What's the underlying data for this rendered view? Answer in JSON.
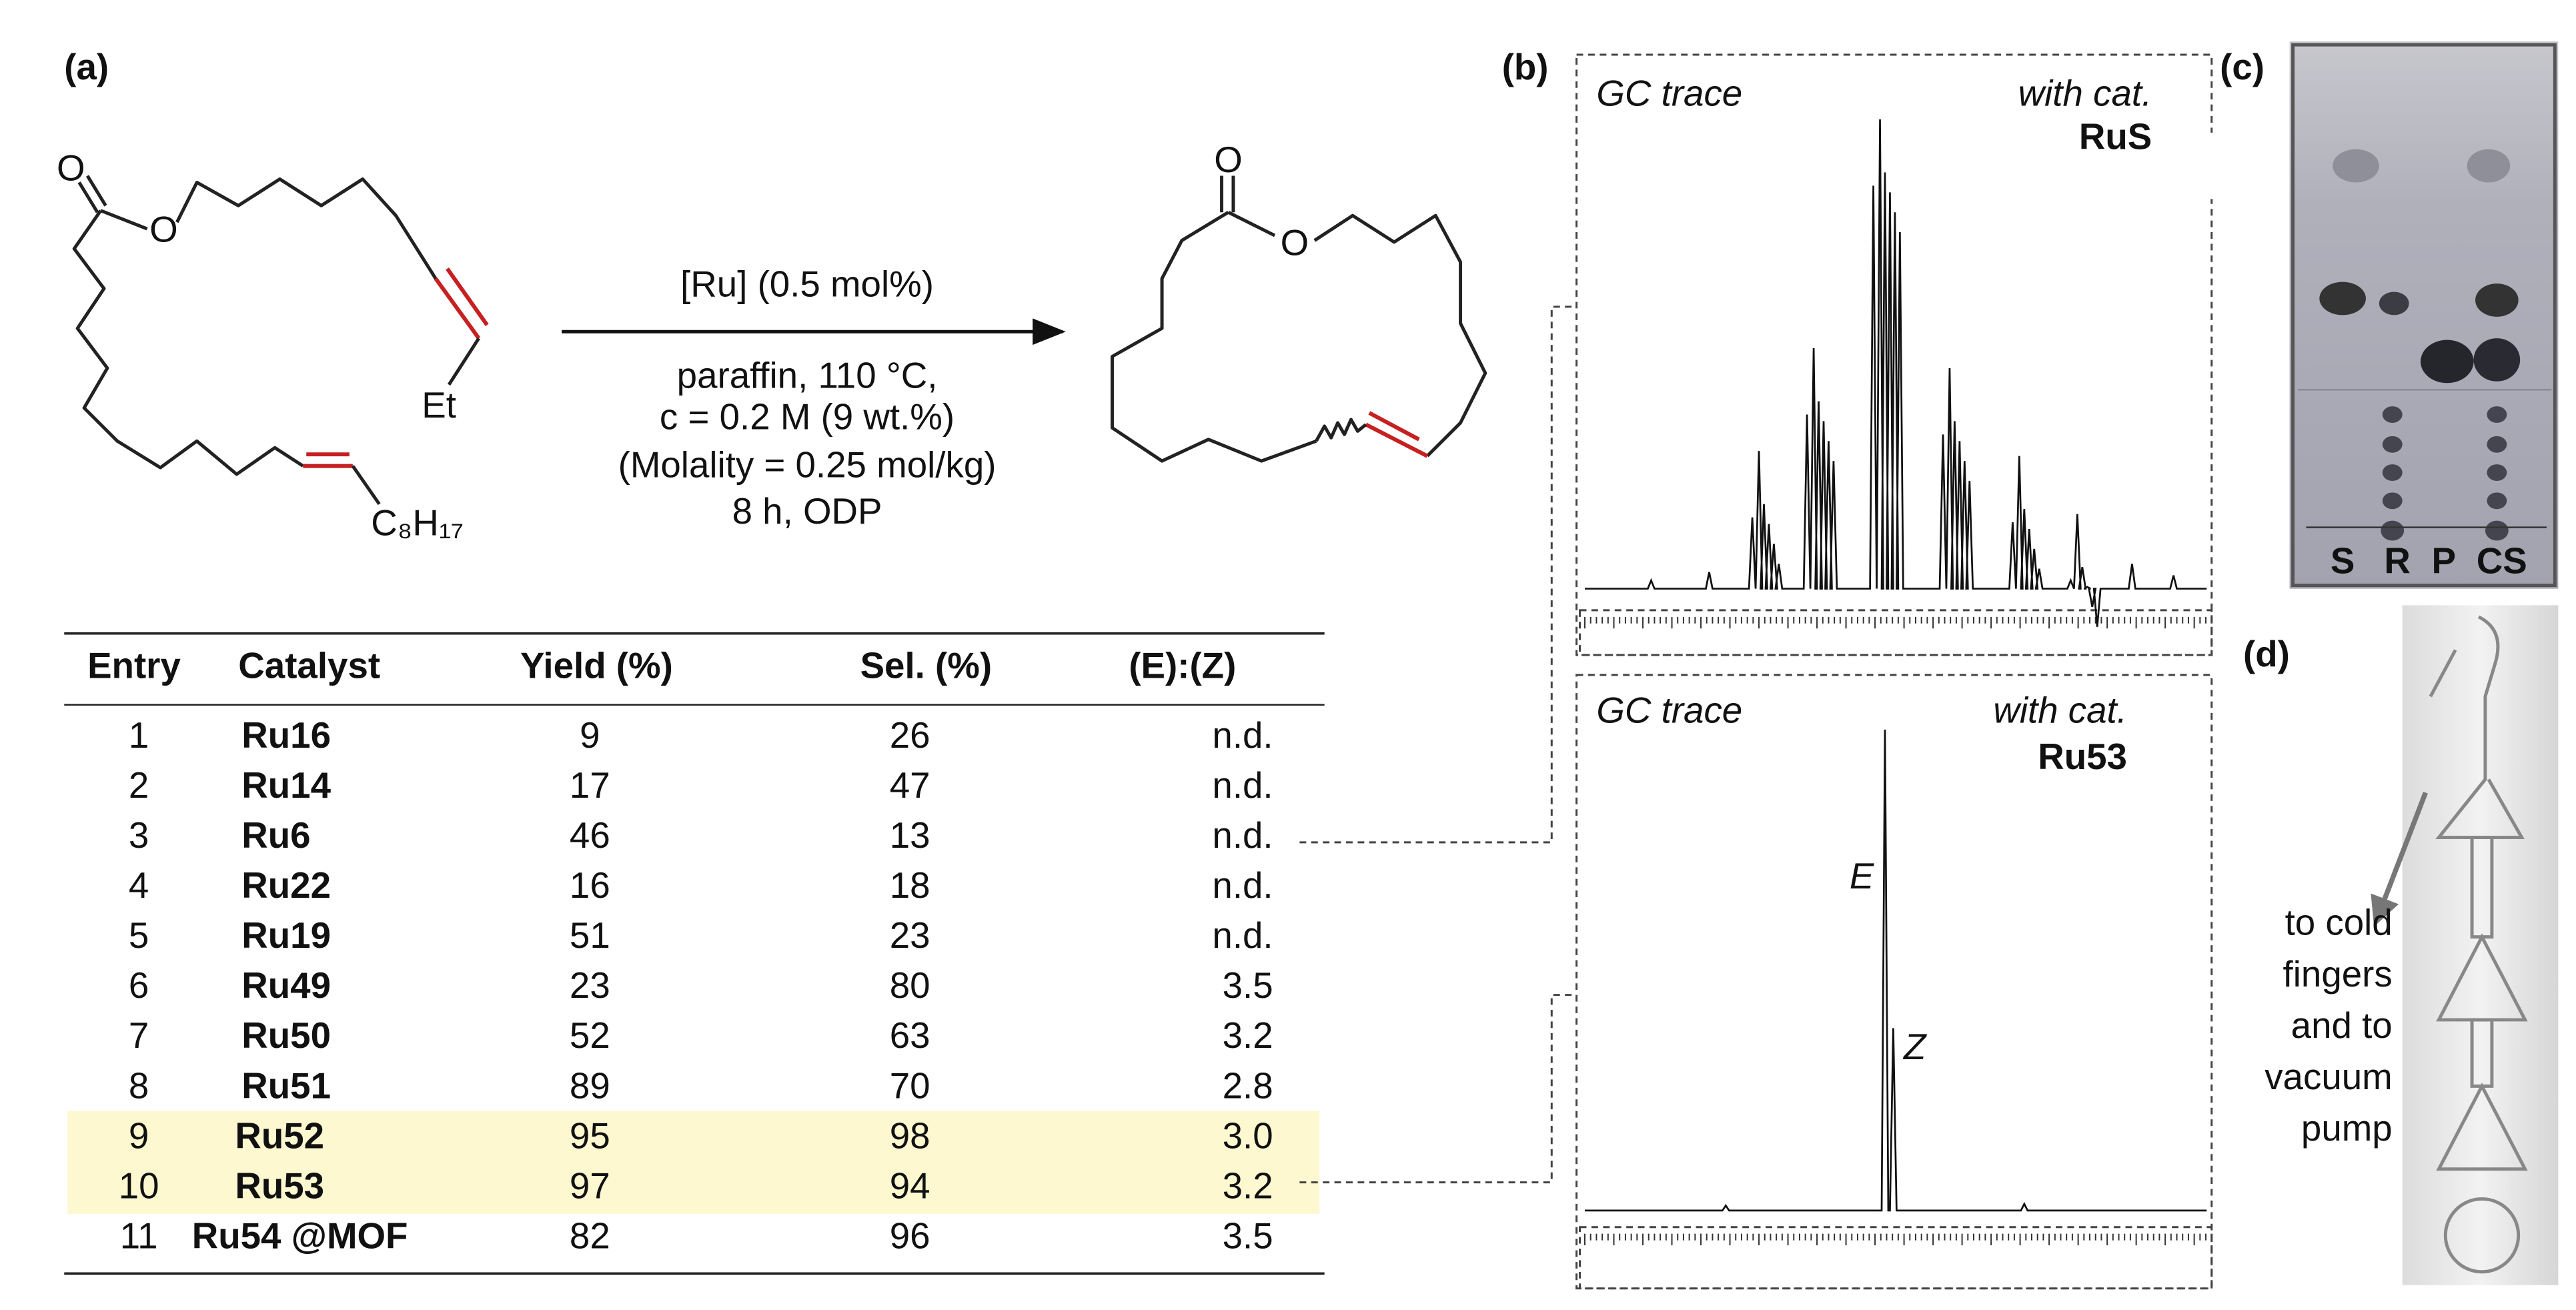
{
  "panel_a": {
    "label": "(a)",
    "reaction": {
      "substrate_atoms": [
        "O",
        "O"
      ],
      "substrate_groups": [
        "Et",
        "C₈H₁₇"
      ],
      "conditions": [
        "[Ru] (0.5 mol%)",
        "paraffin, 110 °C,",
        "c = 0.2 M (9 wt.%)",
        "(Molality = 0.25 mol/kg)",
        "8 h, ODP"
      ],
      "product_atoms": [
        "O",
        "O"
      ]
    },
    "table": {
      "headers": [
        "Entry",
        "Catalyst",
        "Yield (%)",
        "Sel. (%)",
        "(E):(Z)"
      ],
      "rows": [
        [
          "1",
          "Ru16",
          "9",
          "26",
          "n.d."
        ],
        [
          "2",
          "Ru14",
          "17",
          "47",
          "n.d."
        ],
        [
          "3",
          "Ru6",
          "46",
          "13",
          "n.d."
        ],
        [
          "4",
          "Ru22",
          "16",
          "18",
          "n.d."
        ],
        [
          "5",
          "Ru19",
          "51",
          "23",
          "n.d."
        ],
        [
          "6",
          "Ru49",
          "23",
          "80",
          "3.5"
        ],
        [
          "7",
          "Ru50",
          "52",
          "63",
          "3.2"
        ],
        [
          "8",
          "Ru51",
          "89",
          "70",
          "2.8"
        ],
        [
          "9",
          "Ru52",
          "95",
          "98",
          "3.0"
        ],
        [
          "10",
          "Ru53",
          "97",
          "94",
          "3.2"
        ],
        [
          "11",
          "Ru54 @MOF",
          "82",
          "96",
          "3.5"
        ]
      ]
    }
  },
  "panel_b": {
    "label": "(b)",
    "traces": [
      {
        "title": "GC trace",
        "note": "with cat.",
        "catalyst": "RuS"
      },
      {
        "title": "GC trace",
        "note": "with cat.",
        "catalyst": "Ru53",
        "peaks": [
          "E",
          "Z"
        ]
      }
    ]
  },
  "panel_c": {
    "label": "(c)",
    "lanes": [
      "S",
      "R",
      "P",
      "CS"
    ]
  },
  "panel_d": {
    "label": "(d)",
    "caption": [
      "to cold",
      "fingers",
      "and to",
      "vacuum",
      "pump"
    ]
  }
}
